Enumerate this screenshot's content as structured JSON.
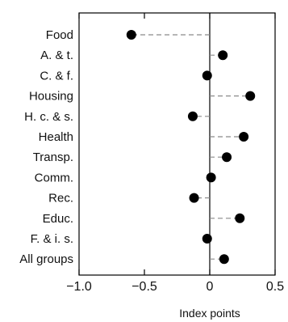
{
  "chart_data": {
    "type": "dot",
    "categories": [
      "Food",
      "A. & t.",
      "C. & f.",
      "Housing",
      "H. c. & s.",
      "Health",
      "Transp.",
      "Comm.",
      "Rec.",
      "Educ.",
      "F. & i. s.",
      "All groups"
    ],
    "values": [
      -0.6,
      0.1,
      -0.02,
      0.31,
      -0.13,
      0.26,
      0.13,
      0.01,
      -0.12,
      0.23,
      -0.02,
      0.11
    ],
    "xlabel": "Index points",
    "xlim": [
      -1.0,
      0.5
    ],
    "xticks": [
      -1.0,
      -0.5,
      0.0,
      0.5
    ],
    "xtick_labels": [
      "−1.0",
      "−0.5",
      "0",
      "0.5"
    ],
    "reference_line": 0,
    "leader_lines": "dashed",
    "grid": false
  }
}
